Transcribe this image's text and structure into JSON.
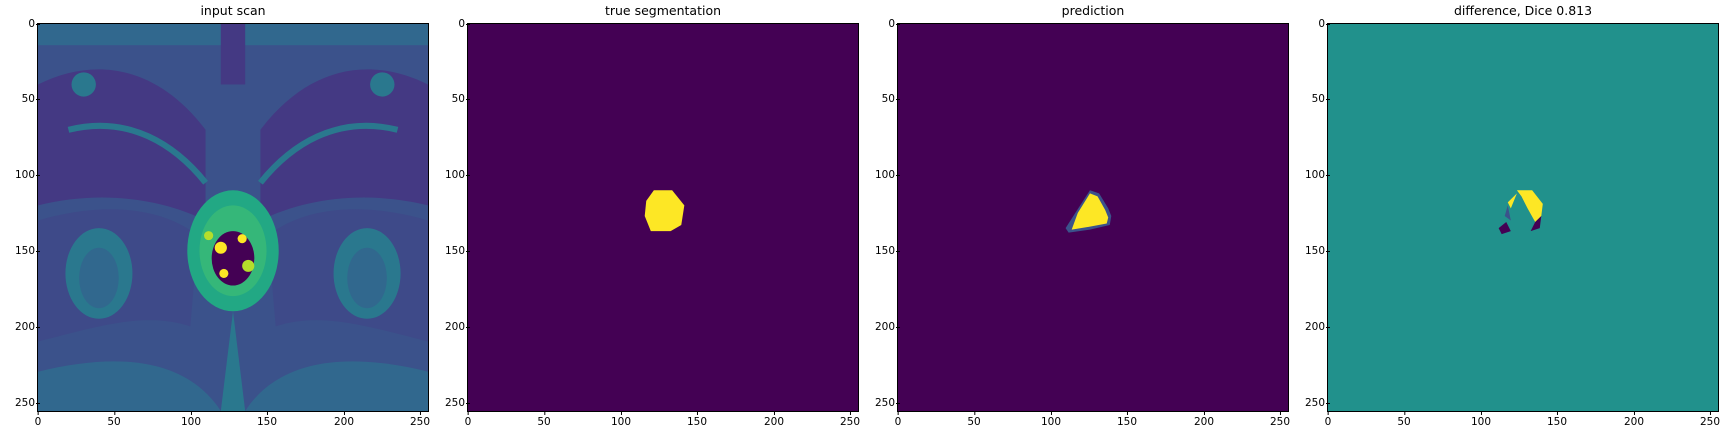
{
  "panels": [
    {
      "title": "input scan",
      "image": "mri-scan"
    },
    {
      "title": "true segmentation",
      "image": "ground-truth-mask"
    },
    {
      "title": "prediction",
      "image": "predicted-mask"
    },
    {
      "title": "difference, Dice 0.813",
      "image": "difference-map"
    }
  ],
  "axes": {
    "xticks": [
      "0",
      "50",
      "100",
      "150",
      "200",
      "250"
    ],
    "yticks": [
      "0",
      "50",
      "100",
      "150",
      "200",
      "250"
    ],
    "xlim": [
      0,
      256
    ],
    "ylim": [
      256,
      0
    ]
  },
  "colors": {
    "viridis_low": "#440154",
    "viridis_mid": "#21918c",
    "viridis_high": "#fde725"
  }
}
